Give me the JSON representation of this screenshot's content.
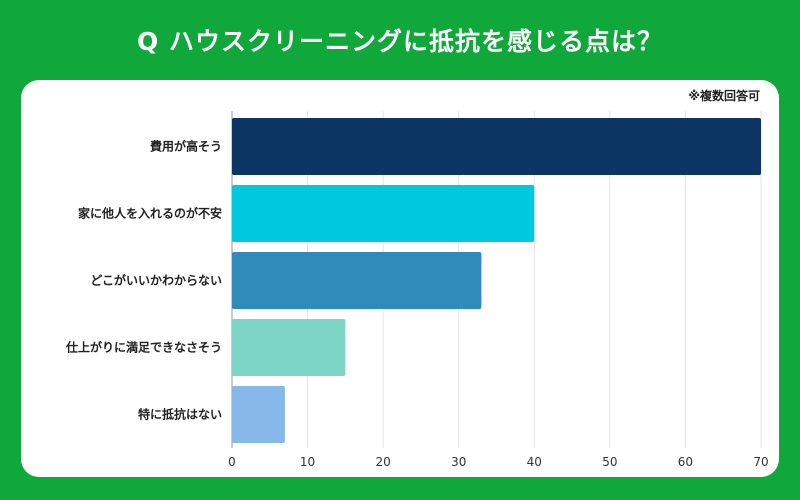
{
  "header": {
    "title": "Q ハウスクリーニングに抵抗を感じる点は？",
    "note": "※複数回答可"
  },
  "colors": {
    "background": "#10a83a",
    "panel": "#ffffff",
    "bars": [
      "#0d3564",
      "#00c8de",
      "#2e8bba",
      "#7dd5c6",
      "#86b9ea"
    ]
  },
  "chart_data": {
    "type": "bar",
    "orientation": "horizontal",
    "categories": [
      "費用が高そう",
      "家に他人を入れるのが不安",
      "どこがいいかわからない",
      "仕上がりに満足できなさそう",
      "特に抵抗はない"
    ],
    "values": [
      70,
      40,
      33,
      15,
      7
    ],
    "xlim": [
      0,
      70
    ],
    "xticks": [
      0,
      10,
      20,
      30,
      40,
      50,
      60,
      70
    ],
    "grid": true,
    "legend": "none"
  }
}
